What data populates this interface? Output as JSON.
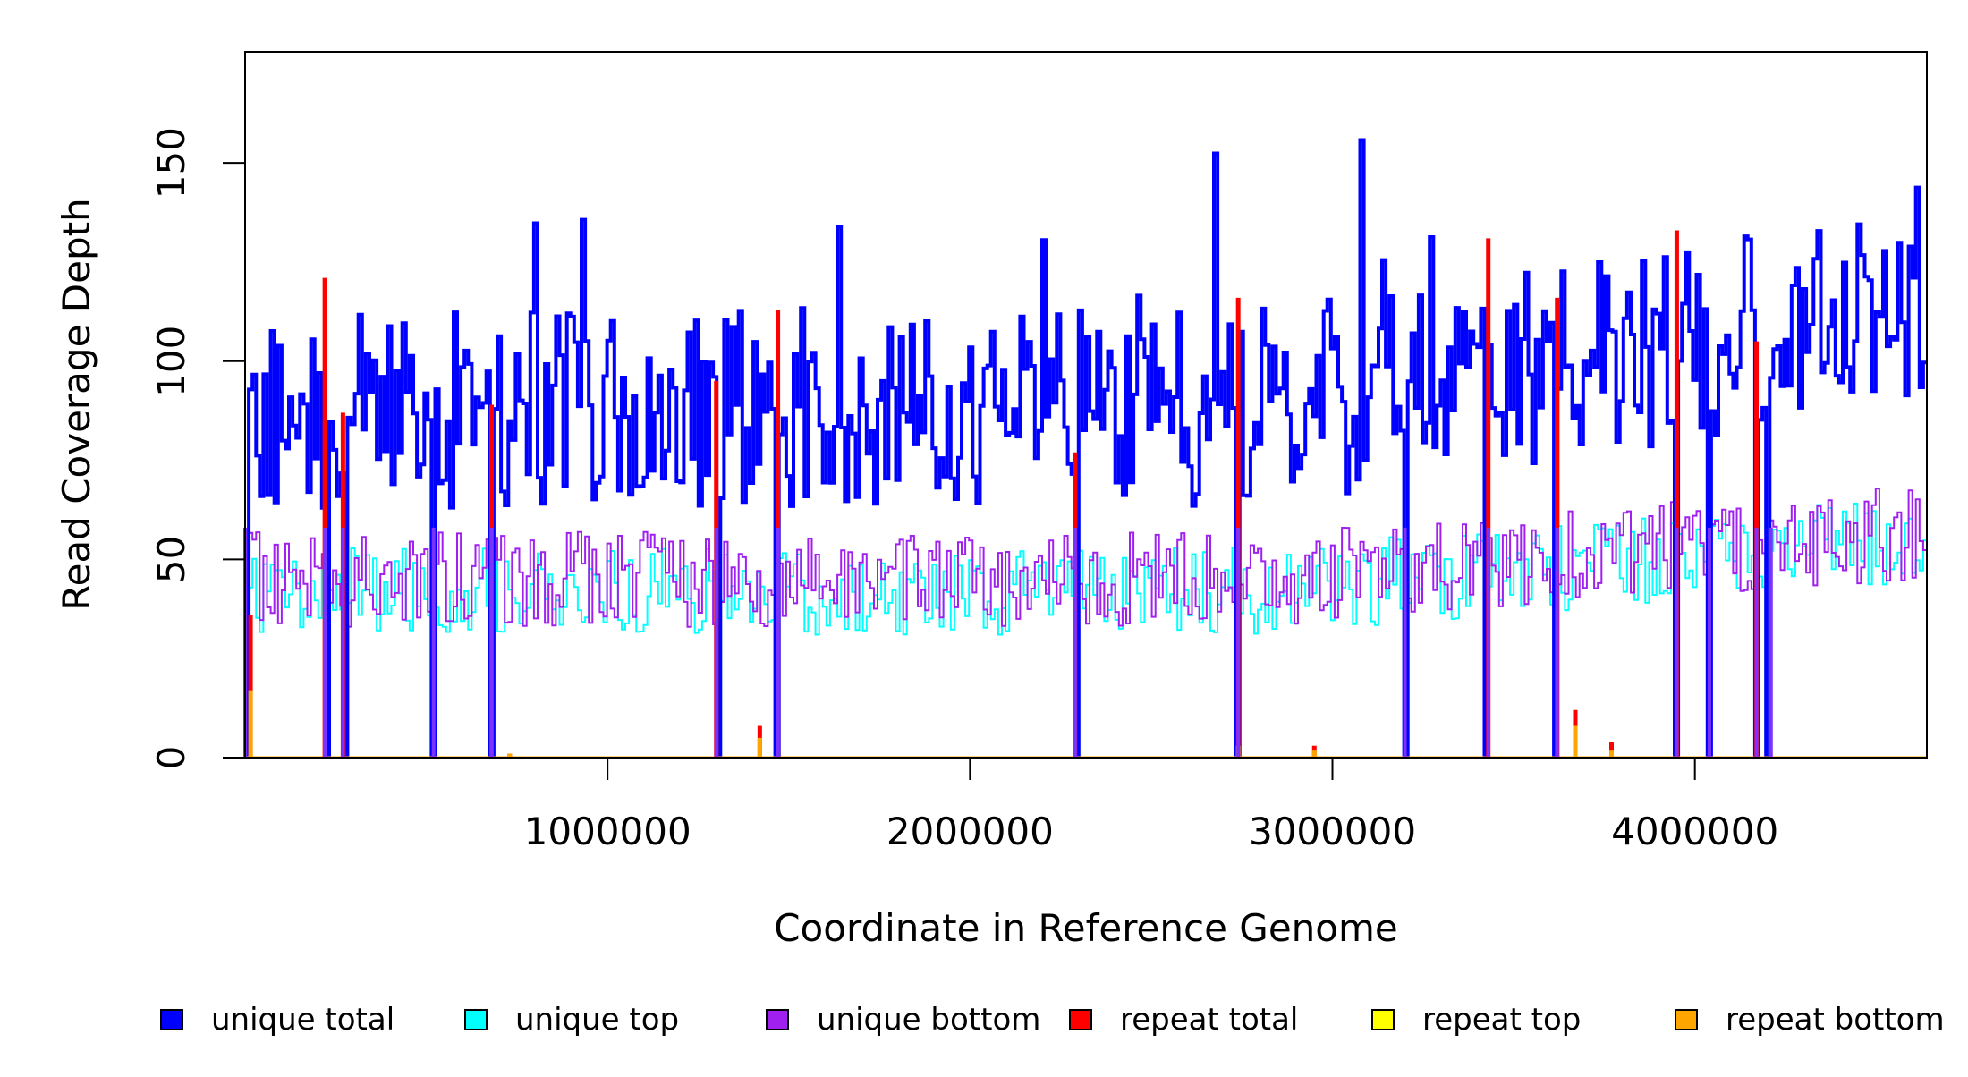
{
  "chart_data": {
    "type": "line",
    "title": "",
    "xlabel": "Coordinate in Reference Genome",
    "ylabel": "Read Coverage Depth",
    "xlim": [
      1,
      4640000
    ],
    "ylim": [
      0,
      178
    ],
    "x_ticks": [
      1000000,
      2000000,
      3000000,
      4000000
    ],
    "x_tick_labels": [
      "1000000",
      "2000000",
      "3000000",
      "4000000"
    ],
    "y_ticks": [
      0,
      50,
      100,
      150
    ],
    "y_tick_labels": [
      "0",
      "50",
      "100",
      "150"
    ],
    "grid": false,
    "legend_position": "bottom",
    "legend": [
      {
        "name": "unique total",
        "color": "#0000ff"
      },
      {
        "name": "unique top",
        "color": "#00ffff"
      },
      {
        "name": "unique bottom",
        "color": "#a020f0"
      },
      {
        "name": "repeat total",
        "color": "#ff0000"
      },
      {
        "name": "repeat top",
        "color": "#ffff00"
      },
      {
        "name": "repeat bottom",
        "color": "#ffa500"
      }
    ],
    "bin_count": 460,
    "mean_levels": {
      "unique_total_early": 88,
      "unique_total_late": 112,
      "unique_top_early": 42,
      "unique_top_late": 55,
      "unique_bottom_early": 45,
      "unique_bottom_late": 57
    },
    "coverage_dropouts": [
      1,
      220000,
      270000,
      520000,
      680000,
      1300000,
      1470000,
      2290000,
      2740000,
      3200000,
      3430000,
      3620000,
      3950000,
      4040000,
      4170000,
      4210000
    ],
    "repeat_spikes": [
      {
        "x": 220000,
        "total": 121,
        "bottom": 0
      },
      {
        "x": 270000,
        "total": 87,
        "bottom": 0
      },
      {
        "x": 680000,
        "total": 89,
        "bottom": 0
      },
      {
        "x": 1300000,
        "total": 95,
        "bottom": 0
      },
      {
        "x": 1470000,
        "total": 113,
        "bottom": 0
      },
      {
        "x": 2290000,
        "total": 77,
        "bottom": 0
      },
      {
        "x": 2740000,
        "total": 116,
        "bottom": 3
      },
      {
        "x": 3430000,
        "total": 131,
        "bottom": 0
      },
      {
        "x": 3620000,
        "total": 116,
        "bottom": 0
      },
      {
        "x": 3950000,
        "total": 133,
        "bottom": 0
      },
      {
        "x": 4170000,
        "total": 105,
        "bottom": 0
      },
      {
        "x": 15000,
        "total": 36,
        "bottom": 17
      },
      {
        "x": 730000,
        "total": 1,
        "bottom": 1
      },
      {
        "x": 1420000,
        "total": 8,
        "bottom": 5
      },
      {
        "x": 2950000,
        "total": 3,
        "bottom": 2
      },
      {
        "x": 3670000,
        "total": 12,
        "bottom": 8
      },
      {
        "x": 3770000,
        "total": 4,
        "bottom": 2
      }
    ]
  }
}
